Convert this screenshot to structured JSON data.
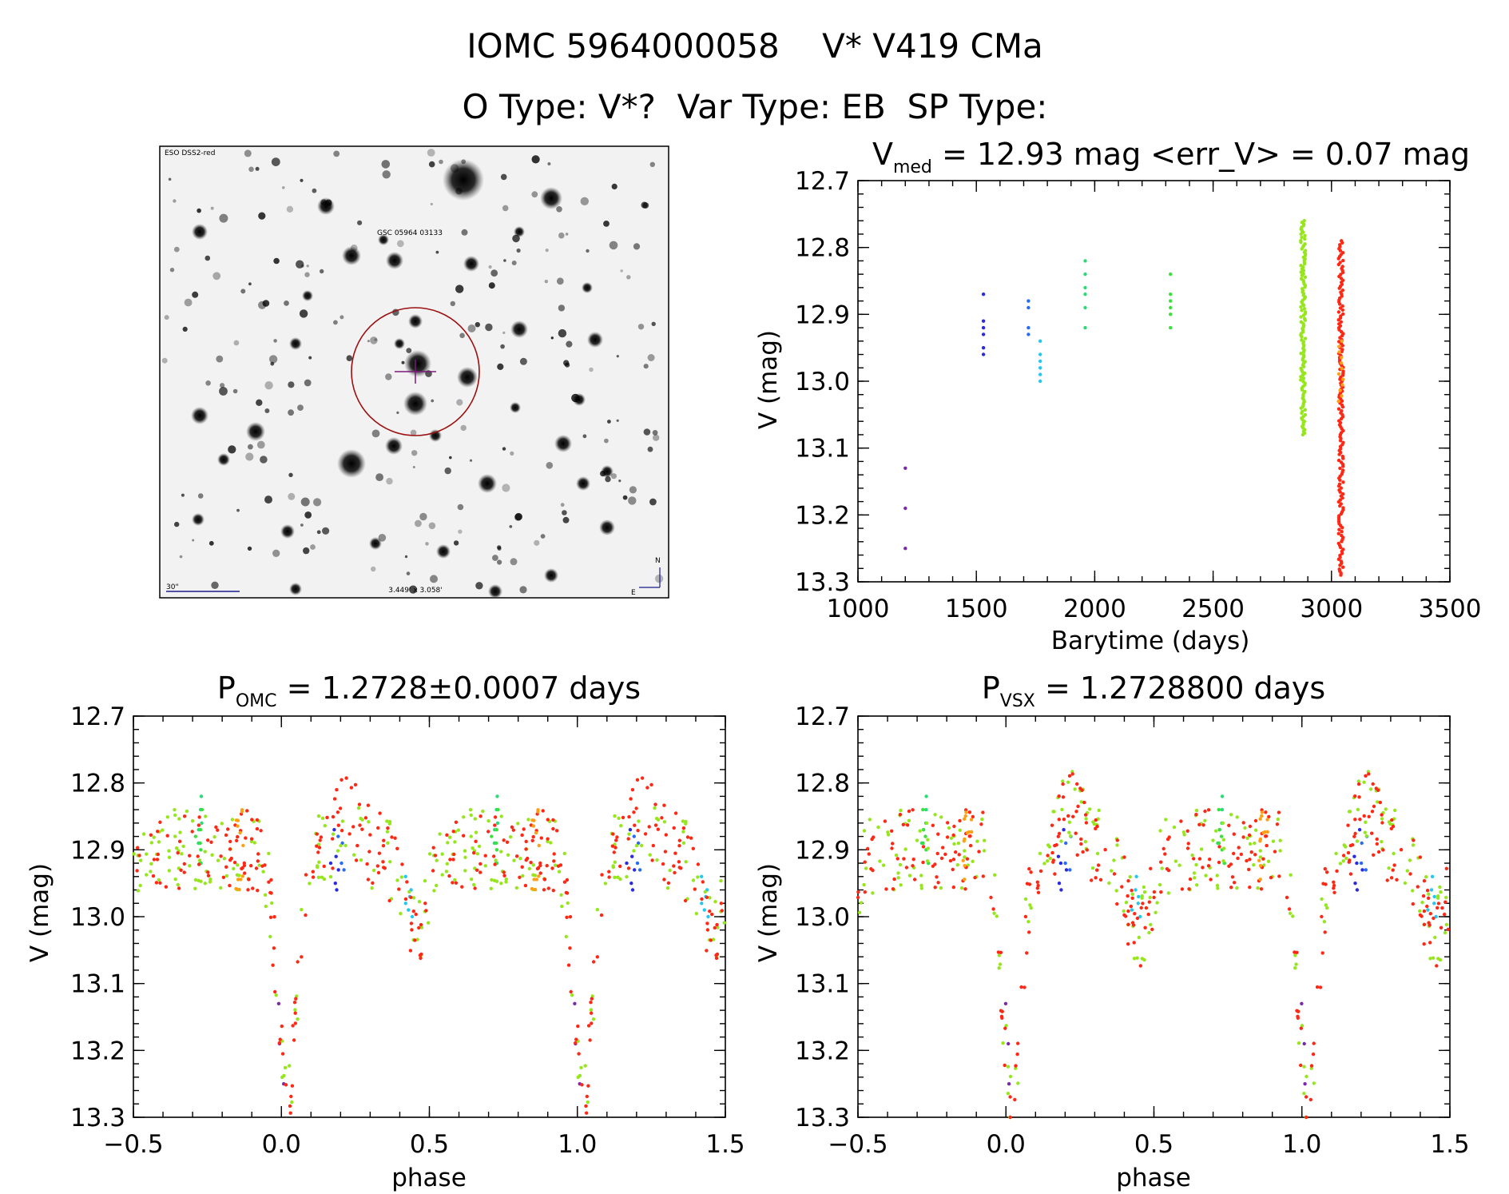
{
  "header": {
    "title": "IOMC 5964000058    V* V419 CMa",
    "subtitle": "O Type: V*?  Var Type: EB  SP Type:"
  },
  "finding_chart": {
    "survey_label": "ESO DSS2-red",
    "target_label": "GSC 05964 03133",
    "scale_label": "30\"",
    "size_label": "3.449' x 3.058'",
    "north_label": "N",
    "east_label": "E"
  },
  "colors": {
    "1200": "#7a2aa8",
    "1530": "#2a2ae0",
    "1720": "#2a6cf0",
    "1770": "#22c8f0",
    "1960": "#28dc78",
    "2320": "#3ce03c",
    "2880": "#96e61e",
    "3040": "#ff2814",
    "3040b": "#ffa014"
  },
  "chart_data": [
    {
      "id": "lightcurve",
      "type": "scatter",
      "title_main": "V",
      "title_sub": "med",
      "title_rest": " = 12.93 mag <err_V> = 0.07 mag",
      "xlabel": "Barytime (days)",
      "ylabel": "V (mag)",
      "xlim": [
        1000,
        3500
      ],
      "ylim": [
        12.7,
        13.3
      ],
      "y_inverted": true,
      "xticks": [
        "1000",
        "1500",
        "2000",
        "2500",
        "3000",
        "3500"
      ],
      "yticks": [
        "12.7",
        "12.8",
        "12.9",
        "13.0",
        "13.1",
        "13.2",
        "13.3"
      ],
      "series": [
        {
          "name": "1200",
          "x": [
            1200,
            1200,
            1200
          ],
          "y": [
            13.13,
            13.19,
            13.25
          ]
        },
        {
          "name": "1530",
          "x": [
            1530,
            1530,
            1530,
            1530,
            1530,
            1530
          ],
          "y": [
            12.87,
            12.91,
            12.92,
            12.93,
            12.95,
            12.96
          ]
        },
        {
          "name": "1720",
          "x": [
            1720,
            1720,
            1720,
            1720
          ],
          "y": [
            12.88,
            12.89,
            12.92,
            12.93
          ]
        },
        {
          "name": "1770",
          "x": [
            1770,
            1770,
            1770,
            1770,
            1770,
            1770
          ],
          "y": [
            12.94,
            12.96,
            12.97,
            12.98,
            12.99,
            13.0
          ]
        },
        {
          "name": "1960",
          "x": [
            1960,
            1960,
            1960,
            1960,
            1960,
            1960
          ],
          "y": [
            12.82,
            12.84,
            12.86,
            12.87,
            12.89,
            12.92
          ]
        },
        {
          "name": "2320",
          "x": [
            2320,
            2320,
            2320,
            2320,
            2320,
            2320
          ],
          "y": [
            12.84,
            12.87,
            12.88,
            12.89,
            12.9,
            12.92
          ]
        }
      ],
      "dense_series": [
        {
          "name": "2880",
          "x": 2880,
          "y_min": 12.76,
          "y_max": 13.08,
          "count": 130
        },
        {
          "name": "3040",
          "x": 3040,
          "y_min": 12.79,
          "y_max": 13.29,
          "count": 170
        },
        {
          "name": "3040b",
          "x": 3040,
          "y_min": 12.94,
          "y_max": 13.03,
          "count": 12
        }
      ]
    },
    {
      "id": "phase_omc",
      "type": "scatter",
      "title_main": "P",
      "title_sub": "OMC",
      "title_rest": " = 1.2728±0.0007 days",
      "xlabel": "phase",
      "ylabel": "V (mag)",
      "xlim": [
        -0.5,
        1.5
      ],
      "ylim": [
        12.7,
        13.3
      ],
      "y_inverted": true,
      "xticks": [
        "−0.5",
        "0.0",
        "0.5",
        "1.0",
        "1.5"
      ],
      "yticks": [
        "12.7",
        "12.8",
        "12.9",
        "13.0",
        "13.1",
        "13.2",
        "13.3"
      ],
      "phase_shift": 0.0
    },
    {
      "id": "phase_vsx",
      "type": "scatter",
      "title_main": "P",
      "title_sub": "VSX",
      "title_rest": " = 1.2728800 days",
      "xlabel": "phase",
      "ylabel": "V (mag)",
      "xlim": [
        -0.5,
        1.5
      ],
      "ylim": [
        12.7,
        13.3
      ],
      "y_inverted": true,
      "xticks": [
        "−0.5",
        "0.0",
        "0.5",
        "1.0",
        "1.5"
      ],
      "yticks": [
        "12.7",
        "12.8",
        "12.9",
        "13.0",
        "13.1",
        "13.2",
        "13.3"
      ],
      "phase_shift": 0.01
    }
  ]
}
